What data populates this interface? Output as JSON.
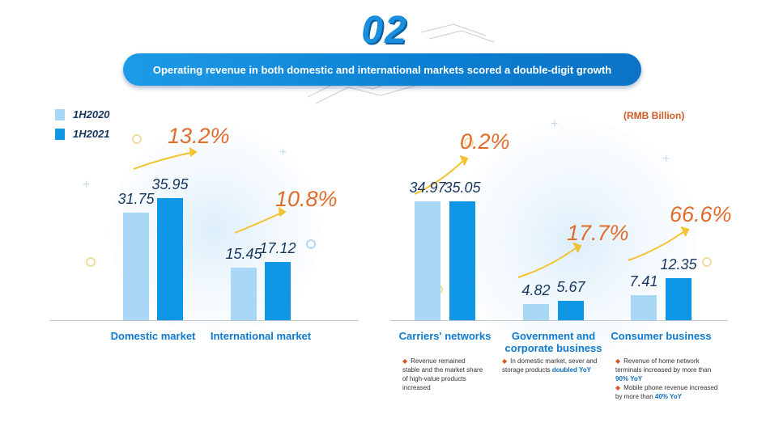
{
  "header": {
    "section_number": "02",
    "banner_text": "Operating revenue in both domestic and international markets scored a double-digit growth"
  },
  "legend": [
    {
      "label": "1H2020",
      "color": "#a9d8f6"
    },
    {
      "label": "1H2021",
      "color": "#0f96e4"
    }
  ],
  "unit_label": "(RMB Billion)",
  "chart_data": [
    {
      "type": "bar",
      "categories": [
        "Domestic market",
        "International market"
      ],
      "series": [
        {
          "name": "1H2020",
          "values": [
            31.75,
            15.45
          ]
        },
        {
          "name": "1H2021",
          "values": [
            35.95,
            17.12
          ]
        }
      ],
      "growth_labels": [
        "13.2%",
        "10.8%"
      ],
      "ylim": [
        0,
        40
      ]
    },
    {
      "type": "bar",
      "categories": [
        "Carriers' networks",
        "Government and corporate business",
        "Consumer business"
      ],
      "series": [
        {
          "name": "1H2020",
          "values": [
            34.97,
            4.82,
            7.41
          ]
        },
        {
          "name": "1H2021",
          "values": [
            35.05,
            5.67,
            12.35
          ]
        }
      ],
      "growth_labels": [
        "0.2%",
        "17.7%",
        "66.6%"
      ],
      "ylim": [
        0,
        40
      ]
    }
  ],
  "notes": {
    "carriers": [
      {
        "text": "Revenue remained stable and the market share of high-value products increased",
        "bold": ""
      }
    ],
    "government": [
      {
        "text": "In domestic market, sever and storage products ",
        "bold": "doubled YoY"
      }
    ],
    "consumer": [
      {
        "text": "Revenue of home network terminals increased by more than ",
        "bold": "90% YoY"
      },
      {
        "text": "Mobile phone revenue increased by more than ",
        "bold": "40% YoY"
      }
    ]
  },
  "colors": {
    "accent_blue": "#0f96e4",
    "light_blue": "#a9d8f6",
    "growth_orange": "#e06c2b"
  }
}
